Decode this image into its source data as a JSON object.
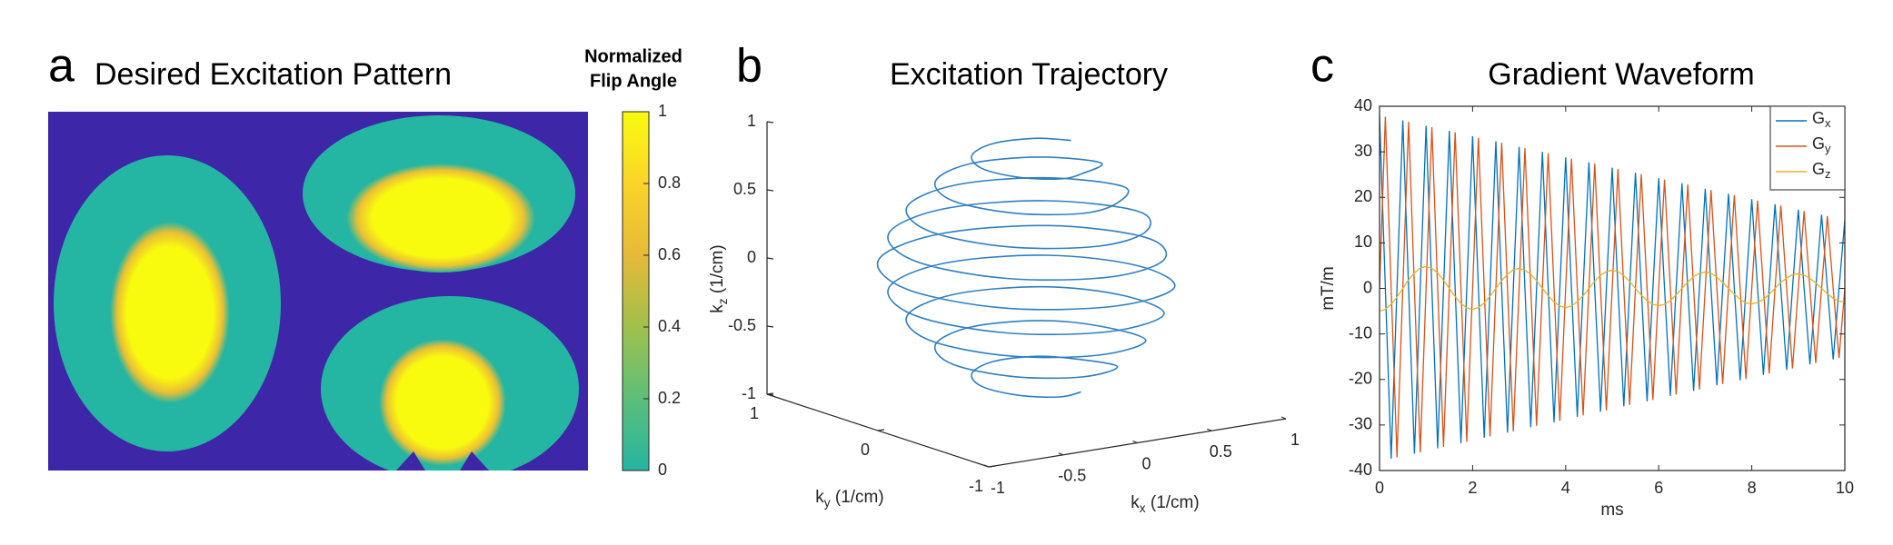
{
  "chart_data": [
    {
      "type": "heatmap",
      "panel": "a",
      "title": "Desired Excitation Pattern",
      "colorbar_label": [
        "Normalized",
        "Flip Angle"
      ],
      "values": [
        0,
        1
      ],
      "clim": [
        0,
        1
      ],
      "cticks": [
        0,
        0.2,
        0.4,
        0.6,
        0.8,
        1
      ]
    },
    {
      "type": "line3d",
      "panel": "b",
      "title": "Excitation Trajectory",
      "xlabel": "kx (1/cm)",
      "ylabel": "ky (1/cm)",
      "zlabel": "kz (1/cm)",
      "xlim": [
        -1,
        1
      ],
      "ylim": [
        -1,
        1
      ],
      "zlim": [
        -1,
        1
      ],
      "xticks": [
        -1,
        -0.5,
        0,
        0.5,
        1
      ],
      "yticks": [
        -1,
        0,
        1
      ],
      "zticks": [
        -1,
        -0.5,
        0,
        0.5,
        1
      ],
      "color": "#2f7fc1",
      "x": [
        0.3,
        0.21,
        0,
        -0.21,
        -0.3,
        -0.21,
        0,
        0.21,
        0.5,
        0.35,
        0,
        -0.35,
        -0.5,
        -0.35,
        0,
        0.35,
        0.65,
        0.46,
        0,
        -0.46,
        -0.65,
        -0.46,
        0,
        0.46,
        0.75,
        0.53,
        0,
        -0.53,
        -0.75,
        -0.53,
        0,
        0.53,
        0.8,
        0.57,
        0,
        -0.57,
        -0.8,
        -0.57,
        0,
        0.57,
        0.75,
        0.53,
        0,
        -0.53,
        -0.75,
        -0.53,
        0,
        0.53,
        0.65,
        0.46,
        0,
        -0.46,
        -0.65,
        -0.46,
        0,
        0.46,
        0.5,
        0.35,
        0,
        -0.35,
        -0.5,
        -0.35,
        0,
        0.35,
        0.3,
        0.21,
        0,
        -0.21,
        -0.3,
        -0.21,
        0,
        0.21
      ],
      "y": [
        0,
        0.21,
        0.3,
        0.21,
        0,
        -0.21,
        -0.3,
        -0.21,
        0,
        0.35,
        0.5,
        0.35,
        0,
        -0.35,
        -0.5,
        -0.35,
        0,
        0.46,
        0.65,
        0.46,
        0,
        -0.46,
        -0.65,
        -0.46,
        0,
        0.53,
        0.75,
        0.53,
        0,
        -0.53,
        -0.75,
        -0.53,
        0,
        0.57,
        0.8,
        0.57,
        0,
        -0.57,
        -0.8,
        -0.57,
        0,
        0.53,
        0.75,
        0.53,
        0,
        -0.53,
        -0.75,
        -0.53,
        0,
        0.46,
        0.65,
        0.46,
        0,
        -0.46,
        -0.65,
        -0.46,
        0,
        0.35,
        0.5,
        0.35,
        0,
        -0.35,
        -0.5,
        -0.35,
        0,
        0.21,
        0.3,
        0.21,
        0,
        -0.21,
        -0.3,
        -0.21
      ],
      "z": [
        0.9,
        0.875,
        0.85,
        0.825,
        0.8,
        0.775,
        0.75,
        0.725,
        0.7,
        0.675,
        0.65,
        0.625,
        0.6,
        0.575,
        0.55,
        0.525,
        0.5,
        0.475,
        0.45,
        0.425,
        0.4,
        0.375,
        0.35,
        0.325,
        0.3,
        0.275,
        0.25,
        0.225,
        0.2,
        0.175,
        0.15,
        0.125,
        0.1,
        0.075,
        0.05,
        0.025,
        0,
        -0.025,
        -0.05,
        -0.075,
        -0.1,
        -0.125,
        -0.15,
        -0.175,
        -0.2,
        -0.225,
        -0.25,
        -0.275,
        -0.3,
        -0.325,
        -0.35,
        -0.375,
        -0.4,
        -0.425,
        -0.45,
        -0.475,
        -0.5,
        -0.525,
        -0.55,
        -0.575,
        -0.6,
        -0.625,
        -0.65,
        -0.675,
        -0.7,
        -0.725,
        -0.75,
        -0.775,
        -0.8,
        -0.825,
        -0.85,
        -0.875
      ]
    },
    {
      "type": "line",
      "panel": "c",
      "title": "Gradient Waveform",
      "xlabel": "ms",
      "ylabel": "mT/m",
      "xlim": [
        0,
        10
      ],
      "xticks": [
        0,
        2,
        4,
        6,
        8,
        10
      ],
      "ylim": [
        -40,
        40
      ],
      "yticks": [
        -40,
        -30,
        -20,
        -10,
        0,
        10,
        20,
        30,
        40
      ],
      "legend": "upper right",
      "x": [
        0,
        0.125,
        0.25,
        0.375,
        0.5,
        0.625,
        0.75,
        0.875,
        1,
        1.125,
        1.25,
        1.375,
        1.5,
        1.625,
        1.75,
        1.875,
        2,
        2.125,
        2.25,
        2.375,
        2.5,
        2.625,
        2.75,
        2.875,
        3,
        3.125,
        3.25,
        3.375,
        3.5,
        3.625,
        3.75,
        3.875,
        4,
        4.125,
        4.25,
        4.375,
        4.5,
        4.625,
        4.75,
        4.875,
        5,
        5.125,
        5.25,
        5.375,
        5.5,
        5.625,
        5.75,
        5.875,
        6,
        6.125,
        6.25,
        6.375,
        6.5,
        6.625,
        6.75,
        6.875,
        7,
        7.125,
        7.25,
        7.375,
        7.5,
        7.625,
        7.75,
        7.875,
        8,
        8.125,
        8.25,
        8.375,
        8.5,
        8.625,
        8.75,
        8.875,
        9,
        9.125,
        9.25,
        9.375,
        9.5,
        9.625,
        9.75,
        9.875,
        10
      ],
      "series": [
        {
          "name": "Gx",
          "color": "#0072bd",
          "values": [
            38,
            0,
            -37.4,
            0,
            36.9,
            0,
            -36.3,
            0,
            35.7,
            0,
            -35.1,
            0,
            34.6,
            0,
            -34,
            0,
            33.4,
            0,
            -32.8,
            0,
            32.3,
            0,
            -31.7,
            0,
            31.1,
            0,
            -30.5,
            0,
            30,
            0,
            -29.4,
            0,
            28.8,
            0,
            -28.2,
            0,
            27.7,
            0,
            -27.1,
            0,
            26.5,
            0,
            -25.9,
            0,
            25.4,
            0,
            -24.8,
            0,
            24.2,
            0,
            -23.6,
            0,
            23.1,
            0,
            -22.5,
            0,
            21.9,
            0,
            -21.3,
            0,
            20.8,
            0,
            -20.2,
            0,
            19.6,
            0,
            -19,
            0,
            18.5,
            0,
            -17.9,
            0,
            17.3,
            0,
            -16.7,
            0,
            16.2,
            0,
            -15.6,
            0,
            15
          ]
        },
        {
          "name": "Gy",
          "color": "#d95319",
          "values": [
            0,
            37.7,
            0,
            -37.1,
            0,
            36.6,
            0,
            -36,
            0,
            35.4,
            0,
            -34.8,
            0,
            34.3,
            0,
            -33.7,
            0,
            33.1,
            0,
            -32.5,
            0,
            32,
            0,
            -31.4,
            0,
            30.8,
            0,
            -30.2,
            0,
            29.7,
            0,
            -29.1,
            0,
            28.5,
            0,
            -27.9,
            0,
            27.4,
            0,
            -26.8,
            0,
            26.2,
            0,
            -25.6,
            0,
            25.1,
            0,
            -24.5,
            0,
            23.9,
            0,
            -23.3,
            0,
            22.8,
            0,
            -22.2,
            0,
            21.6,
            0,
            -21,
            0,
            20.5,
            0,
            -19.9,
            0,
            19.3,
            0,
            -18.7,
            0,
            18.2,
            0,
            -17.6,
            0,
            17,
            0,
            -16.4,
            0,
            15.9,
            0,
            -15.3,
            0
          ]
        },
        {
          "name": "Gz",
          "color": "#edb120",
          "values": [
            -5,
            -4.6,
            -3.5,
            -1.9,
            0,
            1.9,
            3.4,
            4.5,
            4.8,
            4.4,
            3.4,
            1.8,
            0,
            -1.8,
            -3.3,
            -4.3,
            -4.6,
            -4.2,
            -3.2,
            -1.7,
            0,
            1.7,
            3.1,
            4.1,
            4.4,
            4,
            3.1,
            1.7,
            0,
            -1.6,
            -3,
            -3.9,
            -4.2,
            -3.9,
            -2.9,
            -1.6,
            0,
            1.6,
            2.9,
            3.7,
            4,
            3.7,
            2.8,
            1.5,
            0,
            -1.5,
            -2.7,
            -3.5,
            -3.8,
            -3.5,
            -2.7,
            -1.4,
            0,
            1.4,
            2.6,
            3.3,
            3.6,
            3.3,
            2.5,
            1.3,
            0,
            -1.3,
            -2.4,
            -3.2,
            -3.4,
            -3.1,
            -2.4,
            -1.3,
            0,
            1.3,
            2.3,
            3,
            3.2,
            2.9,
            2.2,
            1.2,
            0,
            -1.2,
            -2.2,
            -2.8,
            -3
          ]
        }
      ]
    }
  ]
}
